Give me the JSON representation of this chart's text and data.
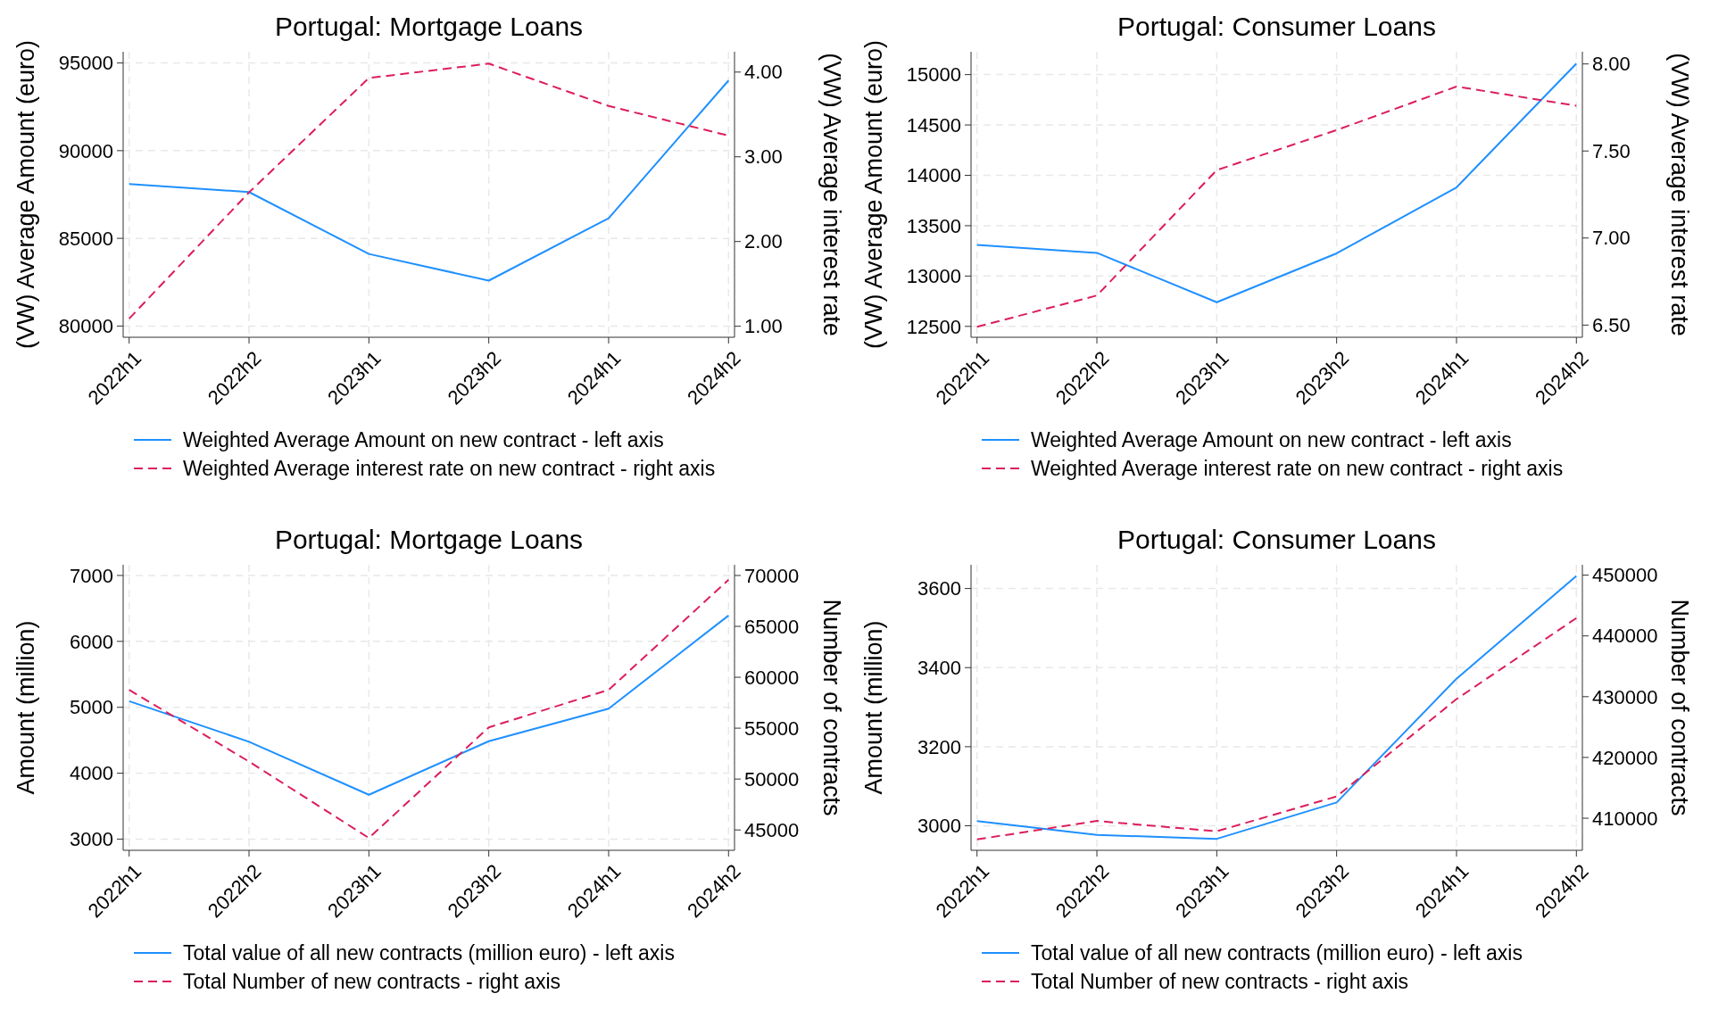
{
  "chart_data": [
    {
      "type": "line",
      "title": "Portugal: Mortgage Loans",
      "ylabel": "(VW) Average Amount (euro)",
      "y2label": "(VW) Average interest rate",
      "categories": [
        "2022h1",
        "2022h2",
        "2023h1",
        "2023h2",
        "2024h1",
        "2024h2"
      ],
      "series": [
        {
          "name": "Weighted Average Amount on new contract - left axis",
          "color": "#1e90ff",
          "line_style": "solid",
          "values": [
            88100,
            87640,
            84110,
            82590,
            86150,
            94000
          ]
        },
        {
          "name": "Weighted Average interest rate on new contract - right axis",
          "color": "#dc1e5a",
          "line_style": "dashed",
          "axis": "y2",
          "values": [
            1.09,
            2.58,
            3.93,
            4.1,
            3.6,
            3.25
          ]
        }
      ],
      "ylim": [
        79360,
        95640
      ],
      "yticks": [
        80000,
        85000,
        90000,
        95000
      ],
      "y2lim": [
        0.87,
        4.24
      ],
      "y2ticks": [
        {
          "value": 1,
          "label": "1.00"
        },
        {
          "value": 2,
          "label": "2.00"
        },
        {
          "value": 3,
          "label": "3.00"
        },
        {
          "value": 4,
          "label": "4.00"
        }
      ],
      "grid": true,
      "legend": "bottom",
      "marker": "none"
    },
    {
      "type": "line",
      "title": "Portugal: Consumer Loans",
      "ylabel": "(VW) Average Amount (euro)",
      "y2label": "(VW) Average interest rate",
      "categories": [
        "2022h1",
        "2022h2",
        "2023h1",
        "2023h2",
        "2024h1",
        "2024h2"
      ],
      "series": [
        {
          "name": "Weighted Average Amount on new contract - left axis",
          "color": "#1e90ff",
          "line_style": "solid",
          "values": [
            13310,
            13230,
            12740,
            13225,
            13880,
            15110
          ]
        },
        {
          "name": "Weighted Average interest rate on new contract - right axis",
          "color": "#dc1e5a",
          "line_style": "dashed",
          "axis": "y2",
          "values": [
            6.49,
            6.67,
            7.39,
            7.62,
            7.87,
            7.76
          ]
        }
      ],
      "ylim": [
        12392,
        15227
      ],
      "yticks": [
        12500,
        13000,
        13500,
        14000,
        14500,
        15000
      ],
      "y2lim": [
        6.43,
        8.07
      ],
      "y2ticks": [
        {
          "value": 6.5,
          "label": "6.50"
        },
        {
          "value": 7,
          "label": "7.00"
        },
        {
          "value": 7.5,
          "label": "7.50"
        },
        {
          "value": 8,
          "label": "8.00"
        }
      ],
      "grid": true,
      "legend": "bottom",
      "marker": "none"
    },
    {
      "type": "line",
      "title": "Portugal: Mortgage Loans",
      "ylabel": "Amount (million)",
      "y2label": "Number of contracts",
      "categories": [
        "2022h1",
        "2022h2",
        "2023h1",
        "2023h2",
        "2024h1",
        "2024h2"
      ],
      "series": [
        {
          "name": "Total value of all new contracts (million euro) - left axis",
          "color": "#1e90ff",
          "line_style": "solid",
          "values": [
            5093,
            4477,
            3673,
            4485,
            4980,
            6392
          ]
        },
        {
          "name": "Total Number of new contracts - right axis",
          "color": "#dc1e5a",
          "line_style": "dashed",
          "axis": "y2",
          "values": [
            58760,
            51720,
            44210,
            55080,
            58760,
            69580
          ]
        }
      ],
      "ylim": [
        2830,
        7162
      ],
      "yticks": [
        3000,
        4000,
        5000,
        6000,
        7000
      ],
      "y2lim": [
        43000,
        71050
      ],
      "y2ticks": [
        45000,
        50000,
        55000,
        60000,
        65000,
        70000
      ],
      "grid": true,
      "legend": "bottom",
      "marker": "none"
    },
    {
      "type": "line",
      "title": "Portugal: Consumer Loans",
      "ylabel": "Amount (million)",
      "y2label": "Number of contracts",
      "categories": [
        "2022h1",
        "2022h2",
        "2023h1",
        "2023h2",
        "2024h1",
        "2024h2"
      ],
      "series": [
        {
          "name": "Total value of all new contracts (million euro) - left axis",
          "color": "#1e90ff",
          "line_style": "solid",
          "values": [
            3012,
            2977,
            2967,
            3059,
            3372,
            3632
          ]
        },
        {
          "name": "Total Number of new contracts - right axis",
          "color": "#dc1e5a",
          "line_style": "dashed",
          "axis": "y2",
          "values": [
            406510,
            409550,
            407850,
            413580,
            429600,
            442930
          ]
        }
      ],
      "ylim": [
        2938,
        3660
      ],
      "yticks": [
        3000,
        3200,
        3400,
        3600
      ],
      "y2lim": [
        404720,
        451700
      ],
      "y2ticks": [
        410000,
        420000,
        430000,
        440000,
        450000
      ],
      "grid": true,
      "legend": "bottom",
      "marker": "none"
    }
  ]
}
